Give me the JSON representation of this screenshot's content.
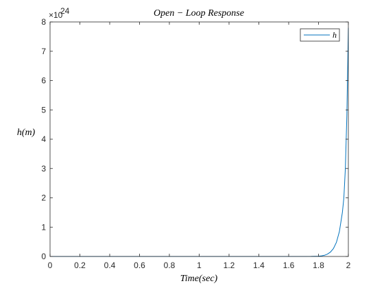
{
  "chart_data": {
    "type": "line",
    "title": "Open − Loop Response",
    "xlabel": "Time(sec)",
    "ylabel": "h(m)",
    "xlim": [
      0,
      2
    ],
    "ylim": [
      0,
      8
    ],
    "x_ticks": [
      0,
      0.2,
      0.4,
      0.6,
      0.8,
      1,
      1.2,
      1.4,
      1.6,
      1.8,
      2
    ],
    "y_ticks": [
      0,
      1,
      2,
      3,
      4,
      5,
      6,
      7,
      8
    ],
    "y_multiplier": {
      "base": "×10",
      "exponent": "24"
    },
    "grid": false,
    "legend": {
      "position": "top-right",
      "entries": [
        "h"
      ]
    },
    "series": [
      {
        "name": "h",
        "color": "#0072BD",
        "x": [
          0,
          1.6,
          1.75,
          1.8,
          1.82,
          1.84,
          1.86,
          1.88,
          1.9,
          1.92,
          1.94,
          1.96,
          1.97,
          1.98,
          1.99,
          2.0
        ],
        "y": [
          0,
          0,
          0.003,
          0.01,
          0.02,
          0.04,
          0.08,
          0.15,
          0.27,
          0.48,
          0.85,
          1.5,
          2.0,
          3.0,
          4.8,
          7.8
        ]
      }
    ]
  }
}
